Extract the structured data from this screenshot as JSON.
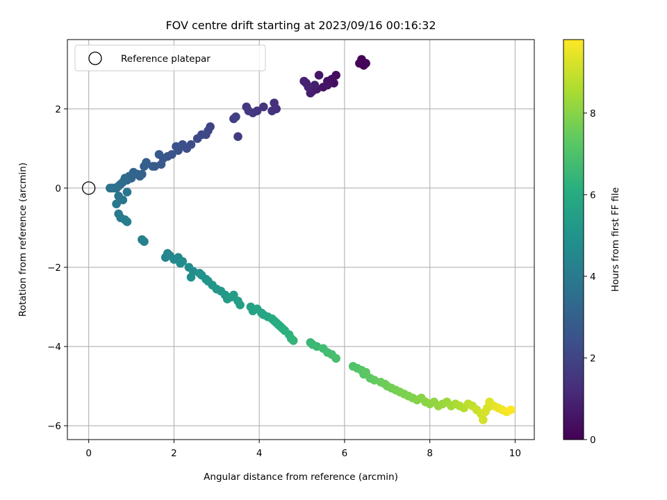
{
  "chart_data": {
    "type": "scatter",
    "title": "FOV centre drift starting at 2023/09/16 00:16:32",
    "xlabel": "Angular distance from reference (arcmin)",
    "ylabel": "Rotation from reference (arcmin)",
    "colorbar_label": "Hours from first FF file",
    "xlim": [
      -0.5,
      10.45
    ],
    "ylim": [
      -6.35,
      3.75
    ],
    "clim": [
      0,
      9.8
    ],
    "x_ticks": [
      0,
      2,
      4,
      6,
      8,
      10
    ],
    "x_tick_labels": [
      "0",
      "2",
      "4",
      "6",
      "8",
      "10"
    ],
    "y_ticks": [
      -6,
      -4,
      -2,
      0,
      2
    ],
    "y_tick_labels": [
      "−6",
      "−4",
      "−2",
      "0",
      "2"
    ],
    "colorbar_ticks": [
      0,
      2,
      4,
      6,
      8
    ],
    "colorbar_tick_labels": [
      "0",
      "2",
      "4",
      "6",
      "8"
    ],
    "colormap": "viridis",
    "grid": true,
    "legend_position": "top-left",
    "legend": [
      {
        "label": "Reference platepar",
        "marker": "open-circle"
      }
    ],
    "reference_point": {
      "x": 0,
      "y": 0
    },
    "series": [
      {
        "x": [
          6.45,
          6.4,
          6.35,
          6.5,
          5.8,
          5.7,
          5.75,
          5.6,
          5.5,
          5.6,
          5.4,
          5.35,
          5.25,
          5.1,
          5.2,
          5.3,
          5.05,
          5.15,
          4.4,
          4.35,
          4.3,
          4.1,
          3.95,
          3.85,
          3.7,
          3.75,
          3.5,
          3.4,
          3.45,
          2.85,
          2.8,
          2.65,
          2.75,
          2.55,
          2.4,
          2.3,
          2.2,
          2.1,
          2.05,
          1.95,
          1.85,
          1.75,
          1.7,
          1.65,
          1.55,
          1.5,
          1.35,
          1.3,
          1.25,
          1.2,
          1.15,
          1.05,
          1.0,
          0.95,
          0.9,
          0.85,
          0.8,
          0.75,
          0.7,
          0.65,
          0.6,
          0.55,
          0.5,
          0.7,
          0.8,
          0.9,
          0.65,
          0.7,
          0.75,
          0.85,
          0.9,
          1.25,
          1.3,
          1.8,
          1.85,
          1.9,
          2.0,
          2.1,
          2.15,
          2.2,
          2.35,
          2.45,
          2.4,
          2.6,
          2.65,
          2.75,
          2.8,
          2.9,
          3.0,
          3.1,
          3.2,
          3.25,
          3.35,
          3.4,
          3.5,
          3.55,
          3.8,
          3.85,
          3.95,
          4.05,
          4.1,
          4.2,
          4.3,
          4.35,
          4.4,
          4.45,
          4.5,
          4.55,
          4.6,
          4.7,
          4.75,
          4.8,
          5.2,
          5.25,
          5.35,
          5.5,
          5.6,
          5.7,
          5.8,
          6.2,
          6.3,
          6.4,
          6.45,
          6.5,
          6.6,
          6.7,
          6.85,
          6.95,
          7.0,
          7.1,
          7.2,
          7.3,
          7.4,
          7.5,
          7.6,
          7.7,
          7.8,
          7.9,
          8.0,
          8.1,
          8.2,
          8.3,
          8.4,
          8.5,
          8.6,
          8.7,
          8.8,
          8.9,
          9.0,
          9.1,
          9.2,
          9.25,
          9.3,
          9.35,
          9.4,
          9.5,
          9.6,
          9.7,
          9.8,
          9.9
        ],
        "y": [
          3.1,
          3.25,
          3.15,
          3.15,
          2.85,
          2.75,
          2.65,
          2.7,
          2.55,
          2.6,
          2.85,
          2.5,
          2.45,
          2.65,
          2.4,
          2.6,
          2.7,
          2.55,
          2.0,
          2.15,
          1.95,
          2.05,
          1.95,
          1.9,
          2.05,
          1.95,
          1.3,
          1.75,
          1.8,
          1.55,
          1.45,
          1.35,
          1.35,
          1.25,
          1.1,
          1.0,
          1.1,
          0.95,
          1.05,
          0.85,
          0.8,
          0.75,
          0.6,
          0.85,
          0.55,
          0.55,
          0.65,
          0.55,
          0.35,
          0.3,
          0.35,
          0.4,
          0.25,
          0.3,
          0.2,
          0.25,
          0.15,
          0.1,
          0.05,
          0.0,
          0.0,
          0.0,
          0.0,
          -0.2,
          -0.3,
          -0.1,
          -0.4,
          -0.65,
          -0.75,
          -0.8,
          -0.85,
          -1.3,
          -1.35,
          -1.75,
          -1.65,
          -1.7,
          -1.8,
          -1.75,
          -1.9,
          -1.85,
          -2.0,
          -2.1,
          -2.25,
          -2.15,
          -2.2,
          -2.3,
          -2.35,
          -2.45,
          -2.55,
          -2.6,
          -2.7,
          -2.8,
          -2.75,
          -2.7,
          -2.85,
          -2.95,
          -3.0,
          -3.1,
          -3.05,
          -3.15,
          -3.2,
          -3.25,
          -3.3,
          -3.35,
          -3.4,
          -3.45,
          -3.5,
          -3.55,
          -3.6,
          -3.7,
          -3.8,
          -3.85,
          -3.9,
          -3.95,
          -4.0,
          -4.05,
          -4.15,
          -4.2,
          -4.3,
          -4.5,
          -4.55,
          -4.6,
          -4.7,
          -4.65,
          -4.8,
          -4.85,
          -4.9,
          -4.95,
          -5.0,
          -5.05,
          -5.1,
          -5.15,
          -5.2,
          -5.25,
          -5.3,
          -5.35,
          -5.3,
          -5.4,
          -5.45,
          -5.4,
          -5.5,
          -5.45,
          -5.4,
          -5.5,
          -5.45,
          -5.5,
          -5.55,
          -5.45,
          -5.5,
          -5.6,
          -5.7,
          -5.85,
          -5.65,
          -5.55,
          -5.4,
          -5.5,
          -5.55,
          -5.6,
          -5.65,
          -5.6
        ],
        "hours": [
          0.0,
          0.05,
          0.1,
          0.15,
          0.3,
          0.35,
          0.4,
          0.45,
          0.5,
          0.55,
          0.6,
          0.65,
          0.7,
          0.75,
          0.8,
          0.85,
          0.9,
          0.95,
          1.3,
          1.35,
          1.4,
          1.45,
          1.5,
          1.55,
          1.6,
          1.65,
          1.75,
          1.8,
          1.85,
          2.0,
          2.05,
          2.1,
          2.15,
          2.2,
          2.3,
          2.35,
          2.4,
          2.45,
          2.5,
          2.55,
          2.6,
          2.65,
          2.7,
          2.75,
          2.8,
          2.85,
          2.9,
          2.95,
          3.0,
          3.05,
          3.1,
          3.15,
          3.2,
          3.25,
          3.3,
          3.35,
          3.4,
          3.45,
          3.5,
          3.55,
          3.6,
          3.65,
          3.7,
          3.75,
          3.8,
          3.85,
          3.9,
          3.95,
          4.0,
          4.05,
          4.1,
          4.2,
          4.25,
          4.4,
          4.45,
          4.5,
          4.55,
          4.6,
          4.65,
          4.7,
          4.75,
          4.8,
          4.85,
          4.9,
          4.95,
          5.0,
          5.05,
          5.1,
          5.15,
          5.2,
          5.25,
          5.3,
          5.35,
          5.4,
          5.45,
          5.5,
          5.6,
          5.65,
          5.7,
          5.75,
          5.8,
          5.85,
          5.9,
          5.95,
          6.0,
          6.05,
          6.1,
          6.15,
          6.2,
          6.25,
          6.3,
          6.35,
          6.5,
          6.55,
          6.6,
          6.7,
          6.75,
          6.8,
          6.85,
          7.05,
          7.1,
          7.15,
          7.2,
          7.25,
          7.3,
          7.4,
          7.5,
          7.55,
          7.6,
          7.65,
          7.7,
          7.75,
          7.8,
          7.85,
          7.9,
          7.95,
          8.0,
          8.05,
          8.1,
          8.15,
          8.2,
          8.25,
          8.3,
          8.4,
          8.5,
          8.6,
          8.7,
          8.8,
          8.9,
          9.0,
          9.1,
          9.15,
          9.2,
          9.25,
          9.3,
          9.4,
          9.5,
          9.6,
          9.7,
          9.8
        ]
      }
    ]
  }
}
